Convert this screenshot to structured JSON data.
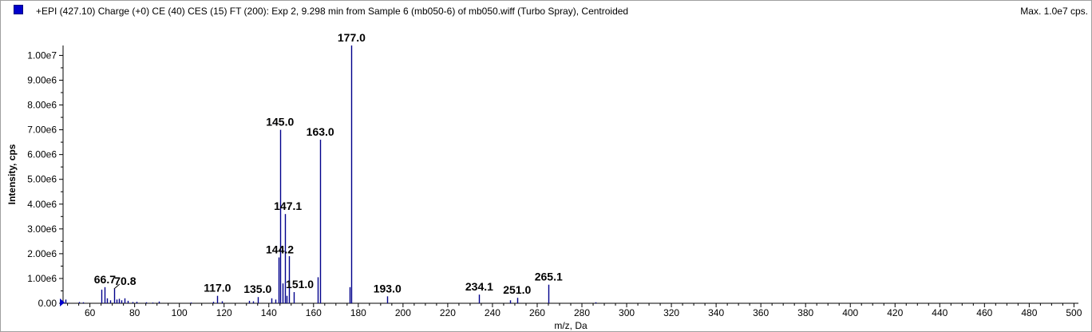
{
  "header": {
    "title": "+EPI (427.10) Charge (+0) CE (40) CES (15) FT (200): Exp 2, 9.298 min from Sample 6 (mb050-6) of mb050.wiff (Turbo Spray), Centroided",
    "max_label": "Max. 1.0e7 cps."
  },
  "colors": {
    "peak": "#00008b",
    "swatch": "#0000cc"
  },
  "chart_data": {
    "type": "bar",
    "xlabel": "m/z, Da",
    "ylabel": "Intensity, cps",
    "xlim": [
      48,
      502
    ],
    "ylim": [
      0,
      10400000
    ],
    "x_ticks": [
      "60",
      "80",
      "100",
      "120",
      "140",
      "160",
      "180",
      "200",
      "220",
      "240",
      "260",
      "280",
      "300",
      "320",
      "340",
      "360",
      "380",
      "400",
      "420",
      "440",
      "460",
      "480",
      "500"
    ],
    "y_ticks": [
      "0.00",
      "1.00e6",
      "2.00e6",
      "3.00e6",
      "4.00e6",
      "5.00e6",
      "6.00e6",
      "7.00e6",
      "8.00e6",
      "9.00e6",
      "1.00e7"
    ],
    "peaks": [
      {
        "mz": 49.0,
        "intensity": 150000
      },
      {
        "mz": 55.0,
        "intensity": 50000
      },
      {
        "mz": 57.0,
        "intensity": 40000
      },
      {
        "mz": 65.0,
        "intensity": 550000
      },
      {
        "mz": 66.7,
        "intensity": 650000
      },
      {
        "mz": 67.5,
        "intensity": 200000
      },
      {
        "mz": 69.0,
        "intensity": 120000
      },
      {
        "mz": 70.8,
        "intensity": 580000
      },
      {
        "mz": 72.0,
        "intensity": 150000
      },
      {
        "mz": 73.0,
        "intensity": 180000
      },
      {
        "mz": 74.0,
        "intensity": 120000
      },
      {
        "mz": 75.5,
        "intensity": 200000
      },
      {
        "mz": 77.0,
        "intensity": 100000
      },
      {
        "mz": 79.0,
        "intensity": 50000
      },
      {
        "mz": 81.0,
        "intensity": 60000
      },
      {
        "mz": 85.0,
        "intensity": 40000
      },
      {
        "mz": 88.0,
        "intensity": 30000
      },
      {
        "mz": 91.0,
        "intensity": 70000
      },
      {
        "mz": 105.0,
        "intensity": 30000
      },
      {
        "mz": 115.0,
        "intensity": 60000
      },
      {
        "mz": 117.0,
        "intensity": 300000
      },
      {
        "mz": 119.0,
        "intensity": 80000
      },
      {
        "mz": 131.0,
        "intensity": 100000
      },
      {
        "mz": 133.0,
        "intensity": 80000
      },
      {
        "mz": 135.0,
        "intensity": 250000
      },
      {
        "mz": 141.0,
        "intensity": 200000
      },
      {
        "mz": 143.0,
        "intensity": 150000
      },
      {
        "mz": 144.2,
        "intensity": 1850000
      },
      {
        "mz": 145.0,
        "intensity": 7000000
      },
      {
        "mz": 146.0,
        "intensity": 800000
      },
      {
        "mz": 147.1,
        "intensity": 3600000
      },
      {
        "mz": 148.0,
        "intensity": 300000
      },
      {
        "mz": 149.0,
        "intensity": 1900000
      },
      {
        "mz": 151.0,
        "intensity": 450000
      },
      {
        "mz": 162.0,
        "intensity": 1050000
      },
      {
        "mz": 163.0,
        "intensity": 6600000
      },
      {
        "mz": 176.0,
        "intensity": 650000
      },
      {
        "mz": 177.0,
        "intensity": 10400000
      },
      {
        "mz": 193.0,
        "intensity": 280000
      },
      {
        "mz": 234.1,
        "intensity": 350000
      },
      {
        "mz": 248.0,
        "intensity": 120000
      },
      {
        "mz": 251.0,
        "intensity": 220000
      },
      {
        "mz": 265.1,
        "intensity": 750000
      },
      {
        "mz": 286.0,
        "intensity": 40000
      }
    ],
    "annotations": [
      {
        "text": "66.7",
        "mz": 66.7,
        "intensity": 650000
      },
      {
        "text": "70.8",
        "mz": 70.8,
        "intensity": 580000
      },
      {
        "text": "117.0",
        "mz": 117.0,
        "intensity": 300000
      },
      {
        "text": "135.0",
        "mz": 135.0,
        "intensity": 250000
      },
      {
        "text": "144.2",
        "mz": 144.2,
        "intensity": 1850000
      },
      {
        "text": "145.0",
        "mz": 145.0,
        "intensity": 7000000
      },
      {
        "text": "147.1",
        "mz": 147.1,
        "intensity": 3600000
      },
      {
        "text": "151.0",
        "mz": 151.0,
        "intensity": 450000
      },
      {
        "text": "163.0",
        "mz": 163.0,
        "intensity": 6600000
      },
      {
        "text": "177.0",
        "mz": 177.0,
        "intensity": 10400000
      },
      {
        "text": "193.0",
        "mz": 193.0,
        "intensity": 280000
      },
      {
        "text": "234.1",
        "mz": 234.1,
        "intensity": 350000
      },
      {
        "text": "251.0",
        "mz": 251.0,
        "intensity": 220000
      },
      {
        "text": "265.1",
        "mz": 265.1,
        "intensity": 750000
      }
    ]
  }
}
